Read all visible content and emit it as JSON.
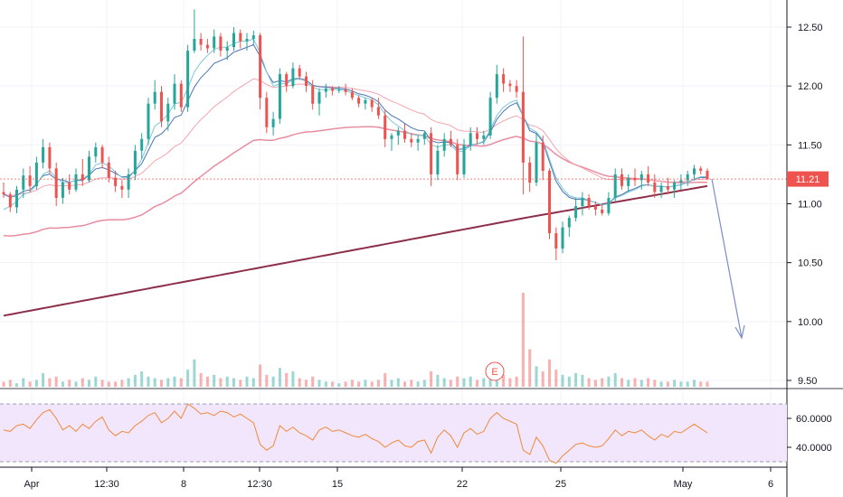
{
  "chart_data": {
    "type": "candlestick",
    "price_axis": {
      "ticks": [
        "12.50",
        "12.00",
        "11.50",
        "11.00",
        "10.50",
        "10.00",
        "9.50"
      ],
      "tick_values": [
        12.5,
        12.0,
        11.5,
        11.0,
        10.5,
        10.0,
        9.5
      ],
      "range": [
        9.45,
        12.72
      ]
    },
    "last_price": {
      "label": "11.21",
      "value": 11.21
    },
    "rsi_axis": {
      "ticks": [
        "60.0000",
        "40.0000"
      ],
      "tick_values": [
        60,
        40
      ],
      "upper_band": 70,
      "lower_band": 30,
      "range": [
        28,
        76
      ]
    },
    "time_axis": {
      "labels": [
        "Apr",
        "12:30",
        "8",
        "12:30",
        "15",
        "22",
        "25",
        "May",
        "6"
      ]
    },
    "earnings_marker": {
      "label": "E"
    },
    "colors": {
      "up": "#26a69a",
      "down": "#ef5350",
      "ma_fast": "#7fc7d9",
      "ma_mid": "#4b74b3",
      "ma_slow_pink": "#f4a5b0",
      "ma_100": "#e98ca0",
      "ma_200": "#8e2f4a",
      "rsi_line": "#f08a3b",
      "rsi_fill": "#f1e6fb",
      "last_price_tag": "#ef5350",
      "arrow": "#7d8fc6"
    },
    "candles": [
      [
        11.1,
        11.18,
        11.05,
        11.08
      ],
      [
        11.08,
        11.1,
        10.93,
        10.97
      ],
      [
        10.97,
        11.15,
        10.92,
        11.12
      ],
      [
        11.12,
        11.3,
        11.05,
        11.24
      ],
      [
        11.24,
        11.32,
        11.1,
        11.15
      ],
      [
        11.15,
        11.4,
        11.12,
        11.35
      ],
      [
        11.35,
        11.55,
        11.3,
        11.48
      ],
      [
        11.48,
        11.52,
        11.25,
        11.3
      ],
      [
        11.3,
        11.35,
        10.98,
        11.05
      ],
      [
        11.05,
        11.22,
        11.0,
        11.18
      ],
      [
        11.18,
        11.25,
        11.08,
        11.12
      ],
      [
        11.12,
        11.3,
        11.1,
        11.25
      ],
      [
        11.25,
        11.38,
        11.15,
        11.2
      ],
      [
        11.2,
        11.45,
        11.18,
        11.4
      ],
      [
        11.4,
        11.52,
        11.35,
        11.48
      ],
      [
        11.48,
        11.5,
        11.3,
        11.35
      ],
      [
        11.35,
        11.4,
        11.18,
        11.22
      ],
      [
        11.22,
        11.28,
        11.1,
        11.15
      ],
      [
        11.15,
        11.2,
        11.05,
        11.12
      ],
      [
        11.12,
        11.3,
        11.05,
        11.25
      ],
      [
        11.25,
        11.5,
        11.2,
        11.45
      ],
      [
        11.45,
        11.6,
        11.38,
        11.55
      ],
      [
        11.55,
        11.9,
        11.5,
        11.85
      ],
      [
        11.85,
        12.05,
        11.8,
        11.95
      ],
      [
        11.95,
        12.0,
        11.65,
        11.7
      ],
      [
        11.7,
        11.9,
        11.62,
        11.85
      ],
      [
        11.85,
        12.1,
        11.8,
        12.02
      ],
      [
        12.02,
        12.05,
        11.78,
        11.82
      ],
      [
        11.82,
        12.35,
        11.78,
        12.3
      ],
      [
        12.3,
        12.65,
        12.28,
        12.4
      ],
      [
        12.4,
        12.45,
        12.3,
        12.35
      ],
      [
        12.35,
        12.4,
        12.28,
        12.32
      ],
      [
        12.32,
        12.48,
        12.28,
        12.42
      ],
      [
        12.42,
        12.45,
        12.25,
        12.3
      ],
      [
        12.3,
        12.38,
        12.22,
        12.33
      ],
      [
        12.33,
        12.5,
        12.3,
        12.45
      ],
      [
        12.45,
        12.48,
        12.32,
        12.38
      ],
      [
        12.38,
        12.45,
        12.3,
        12.4
      ],
      [
        12.4,
        12.47,
        12.35,
        12.43
      ],
      [
        12.43,
        12.45,
        11.8,
        11.9
      ],
      [
        11.9,
        11.95,
        11.6,
        11.65
      ],
      [
        11.65,
        11.78,
        11.58,
        11.72
      ],
      [
        11.72,
        12.15,
        11.68,
        12.1
      ],
      [
        12.1,
        12.12,
        11.95,
        12.0
      ],
      [
        12.0,
        12.2,
        11.98,
        12.15
      ],
      [
        12.15,
        12.18,
        12.05,
        12.08
      ],
      [
        12.08,
        12.12,
        11.95,
        12.0
      ],
      [
        12.0,
        12.05,
        11.8,
        11.85
      ],
      [
        11.85,
        11.98,
        11.75,
        11.95
      ],
      [
        11.95,
        12.02,
        11.9,
        11.98
      ],
      [
        11.98,
        12.0,
        11.92,
        11.96
      ],
      [
        11.96,
        12.0,
        11.94,
        11.97
      ],
      [
        11.97,
        12.02,
        11.92,
        11.95
      ],
      [
        11.95,
        11.98,
        11.88,
        11.9
      ],
      [
        11.9,
        11.92,
        11.82,
        11.85
      ],
      [
        11.85,
        11.9,
        11.8,
        11.88
      ],
      [
        11.88,
        11.9,
        11.78,
        11.82
      ],
      [
        11.82,
        11.9,
        11.72,
        11.75
      ],
      [
        11.75,
        11.8,
        11.48,
        11.55
      ],
      [
        11.55,
        11.6,
        11.45,
        11.58
      ],
      [
        11.58,
        11.65,
        11.5,
        11.62
      ],
      [
        11.62,
        11.68,
        11.52,
        11.55
      ],
      [
        11.55,
        11.6,
        11.48,
        11.52
      ],
      [
        11.52,
        11.58,
        11.45,
        11.55
      ],
      [
        11.55,
        11.62,
        11.5,
        11.6
      ],
      [
        11.6,
        11.65,
        11.15,
        11.25
      ],
      [
        11.25,
        11.5,
        11.2,
        11.45
      ],
      [
        11.45,
        11.6,
        11.4,
        11.55
      ],
      [
        11.55,
        11.62,
        11.48,
        11.5
      ],
      [
        11.5,
        11.55,
        11.2,
        11.25
      ],
      [
        11.25,
        11.55,
        11.22,
        11.5
      ],
      [
        11.5,
        11.65,
        11.45,
        11.6
      ],
      [
        11.6,
        11.65,
        11.5,
        11.55
      ],
      [
        11.55,
        11.62,
        11.5,
        11.58
      ],
      [
        11.58,
        11.95,
        11.55,
        11.9
      ],
      [
        11.9,
        12.18,
        11.85,
        12.1
      ],
      [
        12.1,
        12.15,
        11.95,
        12.02
      ],
      [
        12.02,
        12.05,
        11.95,
        12.0
      ],
      [
        12.0,
        12.05,
        11.9,
        11.95
      ],
      [
        11.95,
        12.42,
        11.08,
        11.35
      ],
      [
        11.35,
        11.4,
        11.1,
        11.18
      ],
      [
        11.18,
        11.6,
        11.15,
        11.52
      ],
      [
        11.52,
        11.58,
        11.2,
        11.28
      ],
      [
        11.28,
        11.3,
        10.7,
        10.75
      ],
      [
        10.75,
        10.8,
        10.52,
        10.62
      ],
      [
        10.62,
        10.85,
        10.58,
        10.8
      ],
      [
        10.8,
        10.9,
        10.72,
        10.88
      ],
      [
        10.88,
        11.05,
        10.85,
        10.98
      ],
      [
        10.98,
        11.1,
        10.9,
        11.05
      ],
      [
        11.05,
        11.08,
        10.95,
        10.98
      ],
      [
        10.98,
        11.02,
        10.9,
        10.95
      ],
      [
        10.95,
        11.0,
        10.9,
        10.92
      ],
      [
        10.92,
        11.1,
        10.9,
        11.05
      ],
      [
        11.05,
        11.3,
        11.02,
        11.25
      ],
      [
        11.25,
        11.3,
        11.12,
        11.15
      ],
      [
        11.15,
        11.25,
        11.1,
        11.22
      ],
      [
        11.22,
        11.3,
        11.15,
        11.2
      ],
      [
        11.2,
        11.28,
        11.12,
        11.25
      ],
      [
        11.25,
        11.32,
        11.15,
        11.18
      ],
      [
        11.18,
        11.25,
        11.05,
        11.1
      ],
      [
        11.1,
        11.18,
        11.05,
        11.15
      ],
      [
        11.15,
        11.22,
        11.08,
        11.12
      ],
      [
        11.12,
        11.2,
        11.05,
        11.18
      ],
      [
        11.18,
        11.25,
        11.12,
        11.2
      ],
      [
        11.2,
        11.28,
        11.15,
        11.25
      ],
      [
        11.25,
        11.33,
        11.2,
        11.3
      ],
      [
        11.3,
        11.32,
        11.25,
        11.28
      ],
      [
        11.28,
        11.3,
        11.2,
        11.21
      ]
    ],
    "volume": [
      3,
      4,
      2,
      5,
      3,
      4,
      8,
      5,
      6,
      3,
      4,
      3,
      5,
      4,
      6,
      4,
      3,
      3,
      4,
      5,
      7,
      9,
      6,
      5,
      4,
      5,
      6,
      5,
      10,
      16,
      8,
      6,
      7,
      5,
      6,
      5,
      4,
      6,
      5,
      13,
      7,
      6,
      11,
      8,
      9,
      5,
      4,
      6,
      4,
      3,
      3,
      2,
      3,
      4,
      3,
      4,
      3,
      4,
      8,
      4,
      5,
      3,
      4,
      3,
      4,
      9,
      7,
      5,
      4,
      6,
      5,
      6,
      4,
      5,
      8,
      12,
      7,
      5,
      6,
      55,
      22,
      12,
      9,
      16,
      10,
      7,
      6,
      8,
      7,
      5,
      4,
      5,
      6,
      8,
      5,
      4,
      5,
      4,
      5,
      4,
      3,
      3,
      4,
      3,
      3,
      4,
      3,
      3
    ],
    "rsi": [
      52,
      51,
      55,
      56,
      53,
      59,
      64,
      66,
      60,
      52,
      55,
      51,
      56,
      53,
      58,
      61,
      52,
      48,
      51,
      50,
      55,
      58,
      62,
      64,
      57,
      60,
      65,
      60,
      70,
      67,
      63,
      64,
      62,
      65,
      64,
      61,
      63,
      60,
      57,
      42,
      38,
      41,
      55,
      51,
      54,
      50,
      48,
      45,
      52,
      54,
      51,
      52,
      50,
      48,
      47,
      49,
      46,
      44,
      40,
      43,
      45,
      41,
      40,
      44,
      45,
      36,
      47,
      52,
      48,
      40,
      50,
      53,
      49,
      51,
      60,
      64,
      60,
      58,
      56,
      38,
      35,
      47,
      41,
      31,
      29,
      34,
      38,
      42,
      43,
      41,
      40,
      41,
      46,
      52,
      48,
      51,
      50,
      52,
      48,
      45,
      49,
      47,
      51,
      50,
      53,
      56,
      53,
      50
    ],
    "ma_fast": [
      10.95,
      10.98,
      11.02,
      11.08,
      11.1,
      11.16,
      11.25,
      11.28,
      11.22,
      11.18,
      11.18,
      11.2,
      11.21,
      11.25,
      11.33,
      11.35,
      11.32,
      11.27,
      11.22,
      11.22,
      11.28,
      11.38,
      11.52,
      11.66,
      11.7,
      11.76,
      11.85,
      11.86,
      11.98,
      12.12,
      12.2,
      12.26,
      12.31,
      12.33,
      12.33,
      12.36,
      12.38,
      12.38,
      12.4,
      12.28,
      12.12,
      12.0,
      12.02,
      12.02,
      12.05,
      12.06,
      12.04,
      11.99,
      11.97,
      11.97,
      11.97,
      11.97,
      11.96,
      11.94,
      11.92,
      11.9,
      11.88,
      11.84,
      11.76,
      11.7,
      11.66,
      11.62,
      11.59,
      11.58,
      11.58,
      11.5,
      11.48,
      11.5,
      11.5,
      11.44,
      11.45,
      11.49,
      11.51,
      11.53,
      11.63,
      11.75,
      11.82,
      11.86,
      11.88,
      11.75,
      11.64,
      11.61,
      11.54,
      11.38,
      11.22,
      11.13,
      11.07,
      11.05,
      11.05,
      11.03,
      11.01,
      10.99,
      11.0,
      11.05,
      11.07,
      11.1,
      11.12,
      11.15,
      11.16,
      11.15,
      11.15,
      11.14,
      11.15,
      11.16,
      11.18,
      11.21,
      11.23,
      11.23
    ]
  }
}
